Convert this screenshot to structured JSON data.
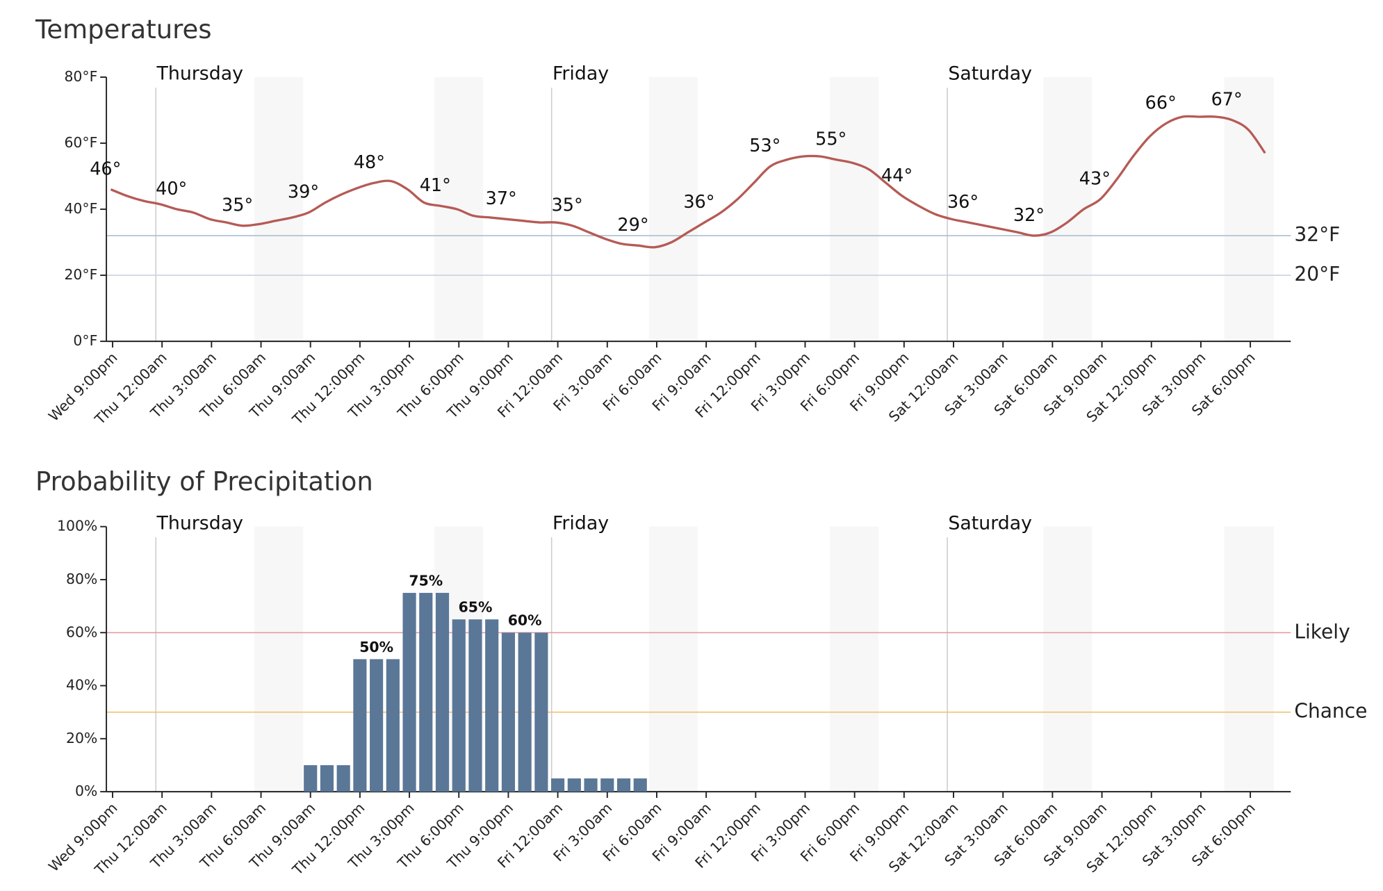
{
  "chart_data": [
    {
      "type": "line",
      "title": "Temperatures",
      "categories": [
        "Wed 9:00pm",
        null,
        null,
        "Thu 12:00am",
        null,
        null,
        "Thu 3:00am",
        null,
        null,
        "Thu 6:00am",
        null,
        null,
        "Thu 9:00am",
        null,
        null,
        "Thu 12:00pm",
        null,
        null,
        "Thu 3:00pm",
        null,
        null,
        "Thu 6:00pm",
        null,
        null,
        "Thu 9:00pm",
        null,
        null,
        "Fri 12:00am",
        null,
        null,
        "Fri 3:00am",
        null,
        null,
        "Fri 6:00am",
        null,
        null,
        "Fri 9:00am",
        null,
        null,
        "Fri 12:00pm",
        null,
        null,
        "Fri 3:00pm",
        null,
        null,
        "Fri 6:00pm",
        null,
        null,
        "Fri 9:00pm",
        null,
        null,
        "Sat 12:00am",
        null,
        null,
        "Sat 3:00am",
        null,
        null,
        "Sat 6:00am",
        null,
        null,
        "Sat 9:00am",
        null,
        null,
        "Sat 12:00pm",
        null,
        null,
        "Sat 3:00pm",
        null,
        null,
        "Sat 6:00pm",
        null
      ],
      "values": [
        46,
        44,
        42.5,
        41.5,
        40,
        39,
        37,
        36,
        35,
        35.5,
        36.5,
        37.5,
        39,
        42,
        44.5,
        46.5,
        48,
        48.5,
        46,
        42,
        41,
        40,
        38,
        37.5,
        37,
        36.5,
        36,
        36,
        35,
        33,
        31,
        29.5,
        29,
        28.5,
        30,
        33,
        36,
        39,
        43,
        48,
        53,
        55,
        56,
        56,
        55,
        54,
        52,
        48,
        44,
        41,
        38.5,
        37,
        36,
        35,
        34,
        33,
        32,
        33,
        36,
        40,
        43,
        49,
        56,
        62,
        66,
        68,
        68,
        68,
        67,
        64,
        57
      ],
      "value_labels": [
        "46°",
        null,
        null,
        null,
        "40°",
        null,
        null,
        null,
        "35°",
        null,
        null,
        null,
        "39°",
        null,
        null,
        null,
        "48°",
        null,
        null,
        null,
        "41°",
        null,
        null,
        null,
        "37°",
        null,
        null,
        null,
        "35°",
        null,
        null,
        null,
        "29°",
        null,
        null,
        null,
        "36°",
        null,
        null,
        null,
        "53°",
        null,
        null,
        null,
        "55°",
        null,
        null,
        null,
        "44°",
        null,
        null,
        null,
        "36°",
        null,
        null,
        null,
        "32°",
        null,
        null,
        null,
        "43°",
        null,
        null,
        null,
        "66°",
        null,
        null,
        null,
        "67°",
        null,
        null
      ],
      "color": "#b65a55",
      "ylim": [
        0,
        80
      ],
      "yticks": [
        {
          "value": 0,
          "label": "0°F"
        },
        {
          "value": 20,
          "label": "20°F"
        },
        {
          "value": 40,
          "label": "40°F"
        },
        {
          "value": 60,
          "label": "60°F"
        },
        {
          "value": 80,
          "label": "80°F"
        }
      ],
      "reference_lines": [
        {
          "value": 32,
          "label": "32°F",
          "color": "#a9bfd2"
        },
        {
          "value": 20,
          "label": "20°F",
          "color": "#c3d4e4"
        }
      ],
      "day_dividers": [
        {
          "label": "Thursday",
          "category": "Thu 12:00am"
        },
        {
          "label": "Friday",
          "category": "Fri 12:00am"
        },
        {
          "label": "Saturday",
          "category": "Sat 12:00am"
        }
      ]
    },
    {
      "type": "bar",
      "title": "Probability of Precipitation",
      "categories": [
        "Wed 9:00pm",
        null,
        null,
        "Thu 12:00am",
        null,
        null,
        "Thu 3:00am",
        null,
        null,
        "Thu 6:00am",
        null,
        null,
        "Thu 9:00am",
        null,
        null,
        "Thu 12:00pm",
        null,
        null,
        "Thu 3:00pm",
        null,
        null,
        "Thu 6:00pm",
        null,
        null,
        "Thu 9:00pm",
        null,
        null,
        "Fri 12:00am",
        null,
        null,
        "Fri 3:00am",
        null,
        null,
        "Fri 6:00am",
        null,
        null,
        "Fri 9:00am",
        null,
        null,
        "Fri 12:00pm",
        null,
        null,
        "Fri 3:00pm",
        null,
        null,
        "Fri 6:00pm",
        null,
        null,
        "Fri 9:00pm",
        null,
        null,
        "Sat 12:00am",
        null,
        null,
        "Sat 3:00am",
        null,
        null,
        "Sat 6:00am",
        null,
        null,
        "Sat 9:00am",
        null,
        null,
        "Sat 12:00pm",
        null,
        null,
        "Sat 3:00pm",
        null,
        null,
        "Sat 6:00pm",
        null
      ],
      "values": [
        0,
        0,
        0,
        0,
        0,
        0,
        0,
        0,
        0,
        0,
        0,
        0,
        10,
        10,
        10,
        50,
        50,
        50,
        75,
        75,
        75,
        65,
        65,
        65,
        60,
        60,
        60,
        5,
        5,
        5,
        5,
        5,
        5,
        0,
        0,
        0,
        0,
        0,
        0,
        0,
        0,
        0,
        0,
        0,
        0,
        0,
        0,
        0,
        0,
        0,
        0,
        0,
        0,
        0,
        0,
        0,
        0,
        0,
        0,
        0,
        0,
        0,
        0,
        0,
        0,
        0,
        0,
        0,
        0,
        0,
        0
      ],
      "value_labels": [
        null,
        null,
        null,
        null,
        null,
        null,
        null,
        null,
        null,
        null,
        null,
        null,
        null,
        null,
        null,
        null,
        "50%",
        null,
        null,
        "75%",
        null,
        null,
        "65%",
        null,
        null,
        "60%",
        null,
        null,
        null,
        null,
        null,
        null,
        null,
        null,
        null,
        null,
        null,
        null,
        null,
        null,
        null,
        null,
        null,
        null,
        null,
        null,
        null,
        null,
        null,
        null,
        null,
        null,
        null,
        null,
        null,
        null,
        null,
        null,
        null,
        null,
        null,
        null,
        null,
        null,
        null,
        null,
        null,
        null,
        null,
        null,
        null
      ],
      "color": "#5a7797",
      "ylim": [
        0,
        100
      ],
      "yticks": [
        {
          "value": 0,
          "label": "0%"
        },
        {
          "value": 20,
          "label": "20%"
        },
        {
          "value": 40,
          "label": "40%"
        },
        {
          "value": 60,
          "label": "60%"
        },
        {
          "value": 80,
          "label": "80%"
        },
        {
          "value": 100,
          "label": "100%"
        }
      ],
      "reference_lines": [
        {
          "value": 60,
          "label": "Likely",
          "color": "#e89aa4"
        },
        {
          "value": 30,
          "label": "Chance",
          "color": "#f0c070"
        }
      ],
      "day_dividers": [
        {
          "label": "Thursday",
          "category": "Thu 12:00am"
        },
        {
          "label": "Friday",
          "category": "Fri 12:00am"
        },
        {
          "label": "Saturday",
          "category": "Sat 12:00am"
        }
      ]
    }
  ]
}
